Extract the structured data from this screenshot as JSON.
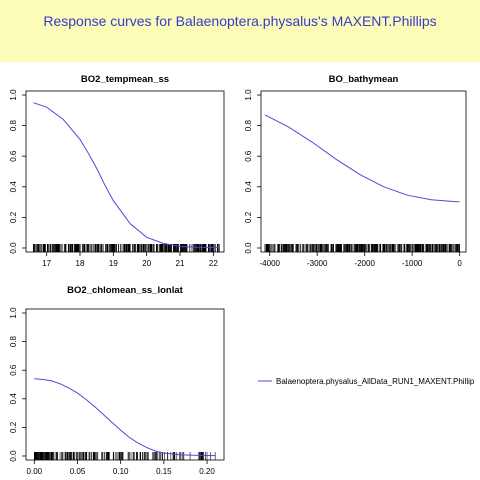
{
  "page": {
    "title": "Response curves for Balaenoptera.physalus's MAXENT.Phillips",
    "title_color": "#3a3ac8",
    "title_background": "#fafcb8"
  },
  "legend": {
    "placement": "right-middle",
    "entries": [
      {
        "label": "Balaenoptera.physalus_AllData_RUN1_MAXENT.Phillip",
        "color": "#4b4bdb"
      }
    ]
  },
  "chart_data": [
    {
      "type": "line",
      "title": "BO2_tempmean_ss",
      "xlabel": "",
      "ylabel": "",
      "xlim": [
        16.5,
        22.2
      ],
      "ylim": [
        0,
        1
      ],
      "xticks": [
        "17",
        "18",
        "19",
        "20",
        "21",
        "22"
      ],
      "yticks": [
        "0.0",
        "0.2",
        "0.4",
        "0.6",
        "0.8",
        "1.0"
      ],
      "grid": false,
      "rug": "dense tick marks along the x axis, concentrated between 16.6 and 22.2",
      "series": [
        {
          "color": "#4b4bdb",
          "x": [
            16.6,
            17.0,
            17.5,
            18.0,
            18.25,
            18.5,
            18.75,
            19.0,
            19.5,
            20.0,
            20.5,
            21.0,
            21.5,
            22.2
          ],
          "y": [
            0.95,
            0.92,
            0.84,
            0.71,
            0.62,
            0.52,
            0.41,
            0.31,
            0.16,
            0.07,
            0.03,
            0.01,
            0.005,
            0.003
          ]
        }
      ]
    },
    {
      "type": "line",
      "title": "BO_bathymean",
      "xlabel": "",
      "ylabel": "",
      "xlim": [
        -4100,
        50
      ],
      "ylim": [
        0,
        1
      ],
      "xticks": [
        "-4000",
        "-3000",
        "-2000",
        "-1000",
        "0"
      ],
      "yticks": [
        "0.0",
        "0.2",
        "0.4",
        "0.6",
        "0.8",
        "1.0"
      ],
      "grid": false,
      "rug": "dense tick marks along the x axis across the full range",
      "series": [
        {
          "color": "#4b4bdb",
          "x": [
            -4100,
            -3600,
            -3100,
            -2600,
            -2100,
            -1600,
            -1100,
            -600,
            -100,
            0
          ],
          "y": [
            0.87,
            0.79,
            0.69,
            0.58,
            0.48,
            0.4,
            0.345,
            0.315,
            0.303,
            0.302
          ]
        }
      ]
    },
    {
      "type": "line",
      "title": "BO2_chlomean_ss_lonlat",
      "xlabel": "",
      "ylabel": "",
      "xlim": [
        -0.005,
        0.215
      ],
      "ylim": [
        0,
        1
      ],
      "xticks": [
        "0.00",
        "0.05",
        "0.10",
        "0.15",
        "0.20"
      ],
      "yticks": [
        "0.0",
        "0.2",
        "0.4",
        "0.6",
        "0.8",
        "1.0"
      ],
      "grid": false,
      "rug": "tick marks along the x axis, densest between 0.00 and 0.10",
      "series": [
        {
          "color": "#4b4bdb",
          "x": [
            0.0,
            0.01,
            0.02,
            0.03,
            0.04,
            0.05,
            0.06,
            0.07,
            0.08,
            0.09,
            0.1,
            0.11,
            0.12,
            0.13,
            0.14,
            0.15,
            0.17,
            0.19,
            0.21
          ],
          "y": [
            0.54,
            0.535,
            0.525,
            0.505,
            0.475,
            0.44,
            0.395,
            0.345,
            0.29,
            0.235,
            0.18,
            0.13,
            0.09,
            0.06,
            0.035,
            0.02,
            0.008,
            0.004,
            0.003
          ]
        }
      ]
    }
  ]
}
